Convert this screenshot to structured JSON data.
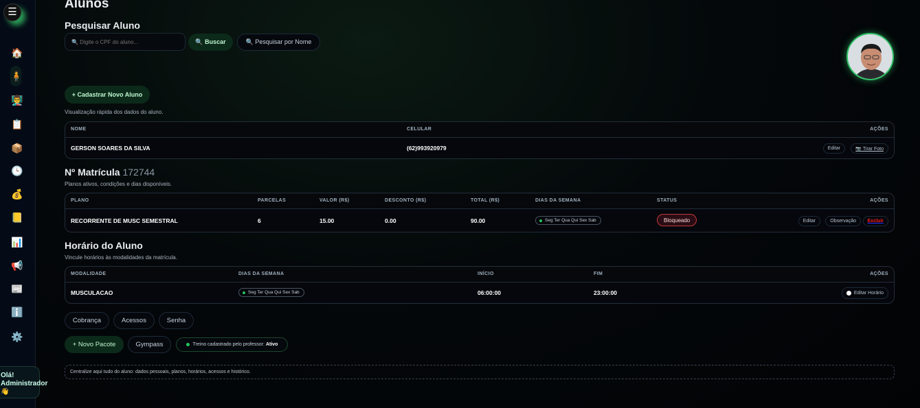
{
  "page": {
    "title": "Alunos"
  },
  "sidebar": {
    "menu_icon": "☰",
    "items": [
      {
        "name": "home-icon",
        "glyph": "🏠"
      },
      {
        "name": "student-icon",
        "glyph": "🧍"
      },
      {
        "name": "teacher-icon",
        "glyph": "👨‍🏫"
      },
      {
        "name": "clipboard-icon",
        "glyph": "📋"
      },
      {
        "name": "package-icon",
        "glyph": "📦"
      },
      {
        "name": "clock-icon",
        "glyph": "🕒"
      },
      {
        "name": "money-bag-icon",
        "glyph": "💰"
      },
      {
        "name": "notebook-icon",
        "glyph": "📒"
      },
      {
        "name": "chart-icon",
        "glyph": "📊"
      },
      {
        "name": "megaphone-icon",
        "glyph": "📢"
      },
      {
        "name": "newspaper-icon",
        "glyph": "📰"
      },
      {
        "name": "info-icon",
        "glyph": "ℹ️"
      },
      {
        "name": "gear-icon",
        "glyph": "⚙️"
      }
    ],
    "greeting_line1": "Olá!",
    "greeting_line2": "Administrador",
    "greeting_emoji": "👋"
  },
  "search": {
    "title": "Pesquisar Aluno",
    "placeholder": "🔍 Digite o CPF do aluno...",
    "buscar": "🔍 Buscar",
    "by_name": "🔍 Pesquisar por Nome"
  },
  "register_button": "+ Cadastrar Novo Aluno",
  "student": {
    "subtitle": "Visualização rápida dos dados do aluno.",
    "headers": [
      "NOME",
      "CELULAR",
      "AÇÕES"
    ],
    "name": "GERSON SOARES DA SILVA",
    "phone": "(62)993920979",
    "edit": "Editar",
    "photo": "📷 Tirar Foto"
  },
  "enrollment": {
    "label": "Nº Matrícula",
    "number": "172744",
    "subtitle": "Planos ativos, condições e dias disponíveis.",
    "headers": [
      "PLANO",
      "PARCELAS",
      "VALOR (R$)",
      "DESCONTO (R$)",
      "TOTAL (R$)",
      "DIAS DA SEMANA",
      "STATUS",
      "AÇÕES"
    ],
    "row": {
      "plano": "RECORRENTE DE MUSC SEMESTRAL",
      "parcelas": "6",
      "valor": "15.00",
      "desconto": "0.00",
      "total": "90.00",
      "dias": "Seg Ter Qua Qui Sex Sab",
      "status": "Bloqueado"
    },
    "actions": {
      "edit": "Editar",
      "obs": "Observação",
      "delete": "Excluir"
    }
  },
  "schedule": {
    "title": "Horário do Aluno",
    "subtitle": "Vincule horários às modalidades da matrícula.",
    "headers": [
      "MODALIDADE",
      "DIAS DA SEMANA",
      "INÍCIO",
      "FIM",
      "AÇÕES"
    ],
    "row": {
      "modalidade": "MUSCULACAO",
      "dias": "Seg Ter Qua Qui Sex Sab",
      "inicio": "06:00:00",
      "fim": "23:00:00"
    },
    "edit": "Editar Horário"
  },
  "tabs": [
    "Cobrança",
    "Acessos",
    "Senha"
  ],
  "new_package": "+ Novo Pacote",
  "gympass": "Gympass",
  "training": {
    "label": "Treino cadastrado pelo professor:",
    "value": "Ativo"
  },
  "note": "Centralize aqui tudo do aluno: dados pessoais, planos, horários, acessos e histórico.",
  "colors": {
    "accent": "#22c55e",
    "danger": "#c0393b",
    "background": "#03060a"
  }
}
